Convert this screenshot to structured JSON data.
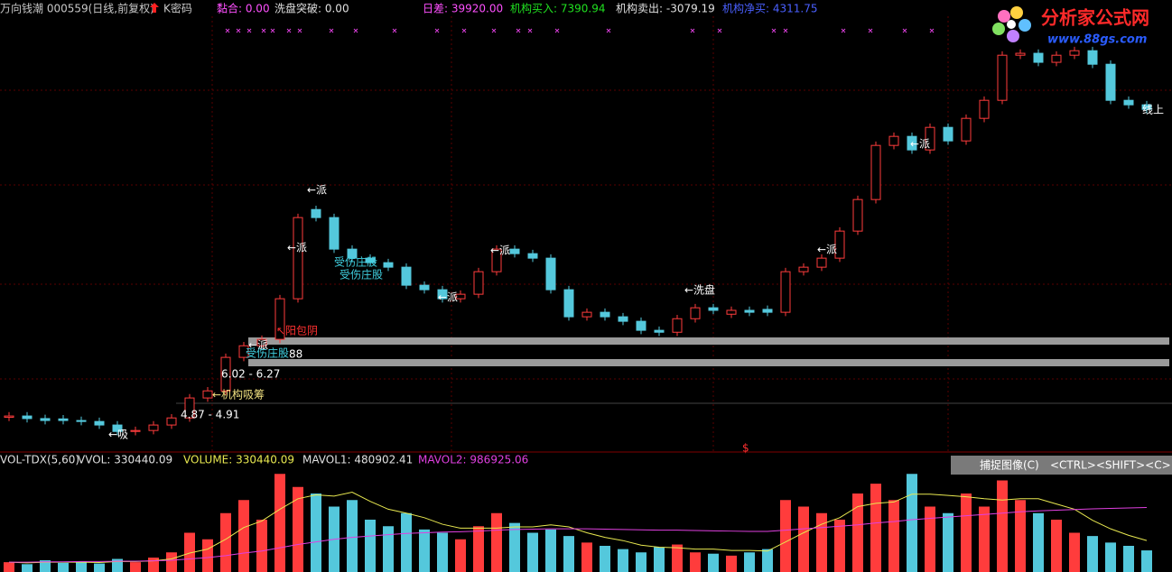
{
  "header": {
    "title": "万向钱潮 000559(日线,前复权)",
    "kcode": "K密码",
    "nianhe": "黏合: 0.00",
    "xipan": "洗盘突破: 0.00",
    "richa": "日差: 39920.00",
    "buy": "机构买入: 7390.94",
    "sell": "机构卖出: -3079.19",
    "net": "机构净买: 4311.75"
  },
  "volume_header": {
    "name": "VOL-TDX(5,60)",
    "vvol": "VVOL: 330440.09",
    "volume": "VOLUME: 330440.09",
    "mavol1": "MAVOL1: 480902.41",
    "mavol2": "MAVOL2: 986925.06"
  },
  "toolbar": {
    "capture": "捕捉图像(C)",
    "shortcut": "<CTRL><SHIFT><C>"
  },
  "logo": {
    "name": "分析家公式网",
    "url": "www.88gs.com"
  },
  "chart_data": [
    {
      "type": "candlestick",
      "ylim": [
        3.8,
        17.3
      ],
      "up_color": "#ff3c3c",
      "down_color": "#54c8dc",
      "open": [
        4.85,
        4.89,
        4.81,
        4.8,
        4.75,
        4.72,
        4.61,
        4.41,
        4.44,
        4.61,
        4.83,
        5.45,
        5.67,
        6.71,
        7.07,
        7.27,
        8.53,
        11.3,
        11.05,
        10.07,
        9.79,
        9.65,
        9.51,
        8.95,
        8.81,
        8.53,
        8.67,
        9.37,
        10.07,
        9.93,
        9.79,
        8.81,
        7.97,
        8.11,
        7.97,
        7.83,
        7.55,
        7.49,
        7.91,
        8.25,
        8.05,
        8.17,
        8.2,
        8.11,
        9.37,
        9.51,
        9.79,
        10.63,
        11.61,
        13.29,
        13.57,
        13.15,
        13.85,
        13.43,
        14.13,
        14.69,
        16.09,
        16.15,
        15.87,
        16.09,
        16.23,
        15.81,
        14.69,
        14.55
      ],
      "high": [
        5.01,
        5.01,
        4.93,
        4.92,
        4.87,
        4.84,
        4.73,
        4.56,
        4.73,
        4.95,
        5.57,
        5.79,
        6.83,
        7.19,
        7.39,
        8.65,
        11.17,
        11.42,
        11.17,
        10.19,
        9.91,
        9.77,
        9.63,
        9.07,
        8.93,
        8.79,
        9.49,
        10.19,
        10.19,
        10.05,
        9.91,
        8.93,
        8.23,
        8.23,
        8.09,
        7.95,
        7.67,
        8.03,
        8.37,
        8.37,
        8.29,
        8.29,
        8.32,
        9.49,
        9.63,
        9.91,
        10.75,
        11.73,
        13.41,
        13.69,
        13.69,
        13.97,
        13.97,
        14.25,
        14.81,
        16.21,
        16.27,
        16.27,
        16.21,
        16.35,
        16.35,
        15.93,
        14.81,
        14.67
      ],
      "low": [
        4.73,
        4.69,
        4.63,
        4.63,
        4.6,
        4.49,
        4.29,
        4.29,
        4.32,
        4.49,
        4.71,
        5.33,
        5.55,
        6.59,
        6.95,
        7.15,
        8.41,
        10.93,
        9.95,
        9.67,
        9.53,
        9.39,
        8.83,
        8.69,
        8.41,
        8.41,
        8.55,
        9.25,
        9.81,
        9.67,
        8.69,
        7.85,
        7.85,
        7.85,
        7.71,
        7.43,
        7.37,
        7.37,
        7.79,
        8.05,
        7.93,
        7.99,
        7.99,
        7.99,
        9.25,
        9.39,
        9.67,
        10.51,
        11.49,
        13.17,
        13.03,
        13.03,
        13.31,
        13.31,
        14.01,
        14.57,
        15.97,
        15.75,
        15.75,
        15.97,
        15.69,
        14.57,
        14.43,
        14.29
      ],
      "close": [
        4.89,
        4.81,
        4.75,
        4.75,
        4.72,
        4.61,
        4.41,
        4.44,
        4.61,
        4.83,
        5.45,
        5.67,
        6.71,
        7.07,
        7.27,
        8.53,
        11.05,
        11.05,
        10.07,
        9.79,
        9.65,
        9.51,
        8.95,
        8.81,
        8.53,
        8.67,
        9.37,
        10.07,
        9.93,
        9.79,
        8.81,
        7.97,
        8.11,
        7.97,
        7.83,
        7.55,
        7.49,
        7.91,
        8.25,
        8.17,
        8.17,
        8.11,
        8.11,
        9.37,
        9.51,
        9.79,
        10.63,
        11.61,
        13.29,
        13.57,
        13.15,
        13.85,
        13.43,
        14.13,
        14.69,
        16.09,
        16.15,
        15.87,
        16.09,
        16.23,
        15.81,
        14.69,
        14.55,
        14.41
      ],
      "annotations": [
        "←派",
        "←派",
        "←派",
        "←派",
        "←派",
        "←派",
        "←派",
        "←吸",
        "←机构吸筹",
        "4.87 - 4.91",
        "6.02 - 6.27",
        "↖阳包阴",
        "受伤庄股",
        "受伤庄股",
        "受伤庄股",
        "88",
        "←洗盘",
        "线上",
        "$"
      ]
    },
    {
      "type": "volume",
      "ylim": [
        0,
        1600000
      ],
      "up_color": "#ff3c3c",
      "down_color": "#54c8dc",
      "values": [
        150000,
        120000,
        180000,
        140000,
        160000,
        130000,
        200000,
        150000,
        220000,
        300000,
        600000,
        500000,
        900000,
        1100000,
        800000,
        1500000,
        1300000,
        1200000,
        1000000,
        1100000,
        800000,
        700000,
        900000,
        650000,
        600000,
        500000,
        700000,
        900000,
        750000,
        600000,
        650000,
        550000,
        450000,
        400000,
        350000,
        300000,
        380000,
        420000,
        300000,
        280000,
        250000,
        300000,
        350000,
        1100000,
        1000000,
        900000,
        800000,
        1200000,
        1350000,
        1100000,
        1500000,
        1000000,
        900000,
        1200000,
        1000000,
        1400000,
        1100000,
        900000,
        800000,
        600000,
        550000,
        450000,
        400000,
        330440.09
      ],
      "series": [
        {
          "color": "#e8e850",
          "values": [
            150000,
            140000,
            150000,
            150000,
            150000,
            145000,
            160000,
            160000,
            170000,
            200000,
            290000,
            350000,
            500000,
            680000,
            780000,
            960000,
            1120000,
            1180000,
            1160000,
            1220000,
            1080000,
            960000,
            900000,
            830000,
            730000,
            670000,
            670000,
            670000,
            690000,
            690000,
            720000,
            690000,
            600000,
            530000,
            480000,
            410000,
            380000,
            370000,
            350000,
            350000,
            330000,
            330000,
            320000,
            460000,
            600000,
            730000,
            830000,
            1000000,
            1050000,
            1070000,
            1190000,
            1190000,
            1170000,
            1150000,
            1120000,
            1100000,
            1120000,
            1120000,
            1040000,
            960000,
            790000,
            660000,
            560000,
            480902.41
          ]
        },
        {
          "color": "#e040e0",
          "values": [
            150000,
            150000,
            155000,
            155000,
            160000,
            160000,
            165000,
            165000,
            170000,
            180000,
            200000,
            220000,
            250000,
            290000,
            320000,
            370000,
            420000,
            460000,
            500000,
            530000,
            550000,
            570000,
            590000,
            600000,
            610000,
            615000,
            625000,
            640000,
            650000,
            655000,
            660000,
            660000,
            660000,
            655000,
            650000,
            645000,
            640000,
            640000,
            635000,
            630000,
            625000,
            620000,
            620000,
            640000,
            660000,
            680000,
            700000,
            720000,
            750000,
            770000,
            800000,
            820000,
            840000,
            860000,
            880000,
            900000,
            920000,
            935000,
            945000,
            955000,
            965000,
            972000,
            980000,
            986925.06
          ]
        }
      ]
    }
  ]
}
